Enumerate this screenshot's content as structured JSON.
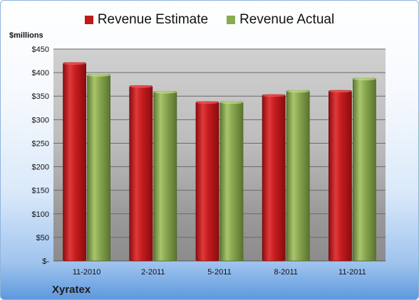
{
  "chart_data": {
    "type": "bar",
    "categories": [
      "11-2010",
      "2-2011",
      "5-2011",
      "8-2011",
      "11-2011"
    ],
    "series": [
      {
        "name": "Revenue Estimate",
        "values": [
          421,
          372,
          338,
          353,
          362
        ],
        "color": "#c0191b"
      },
      {
        "name": "Revenue Actual",
        "values": [
          396,
          360,
          338,
          362,
          388
        ],
        "color": "#8aab51"
      }
    ],
    "ylabel": "$millions",
    "ylim": [
      0,
      450
    ],
    "yticks": [
      0,
      50,
      100,
      150,
      200,
      250,
      300,
      350,
      400,
      450
    ],
    "ytick_labels": [
      "$-",
      "$50",
      "$100",
      "$150",
      "$200",
      "$250",
      "$300",
      "$350",
      "$400",
      "$450"
    ],
    "grid": true,
    "legend_position": "top"
  },
  "footer": {
    "company": "Xyratex"
  }
}
